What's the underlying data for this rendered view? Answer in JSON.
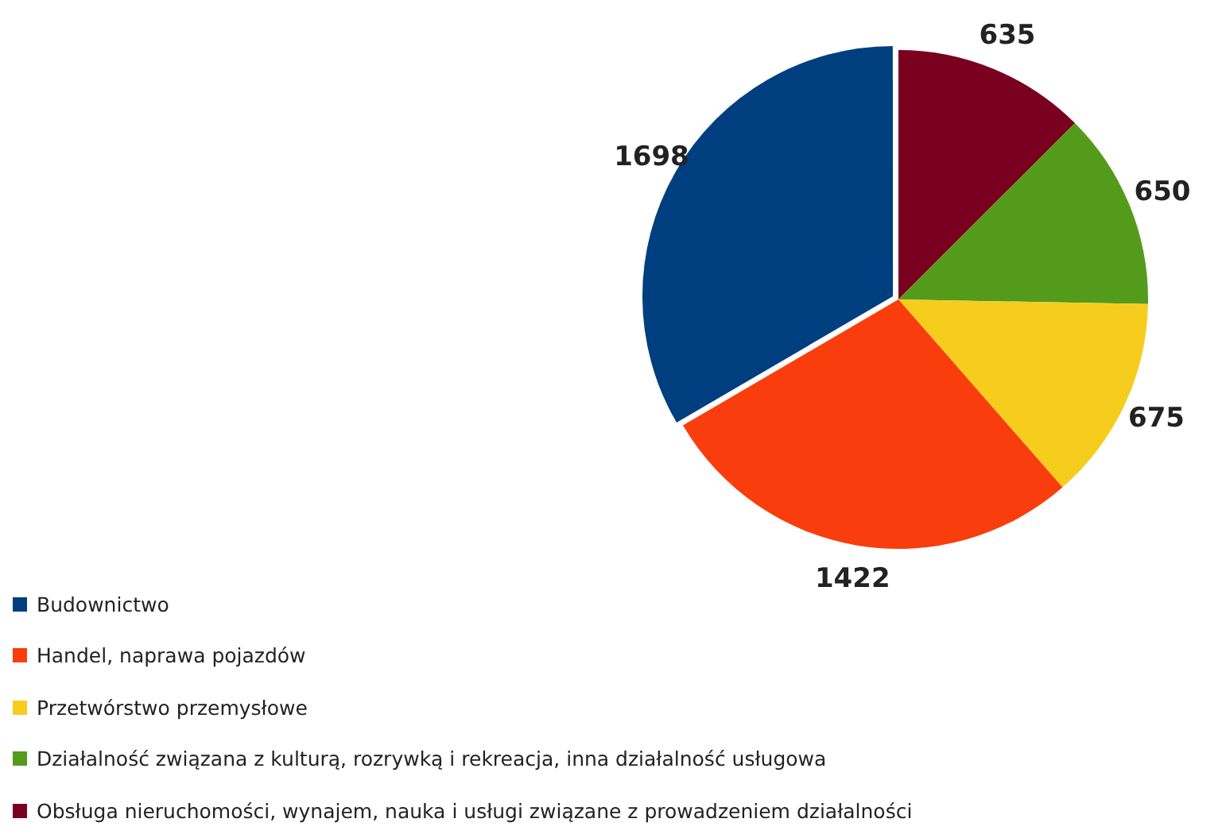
{
  "chart_data": {
    "type": "pie",
    "categories": [
      "Budownictwo",
      "Handel, naprawa pojazdów",
      "Przetwórstwo przemysłowe",
      "Działalność związana z kulturą, rozrywką i rekreacja, inna działalność usługowa",
      "Obsługa nieruchomości, wynajem, nauka i usługi związane z prowadzeniem działalności"
    ],
    "values": [
      1698,
      1422,
      675,
      650,
      635
    ],
    "colors": [
      "#003f7f",
      "#f93d0c",
      "#f7cd1d",
      "#549b1b",
      "#7a0020"
    ],
    "data_labels": true,
    "legend": "bottom left"
  }
}
